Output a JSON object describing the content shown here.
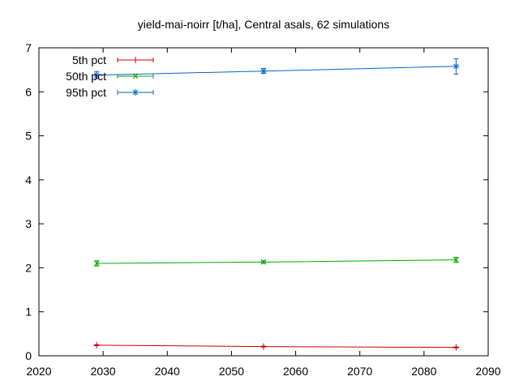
{
  "chart_data": {
    "type": "line",
    "title": "yield-mai-noirr [t/ha], Central asals, 62 simulations",
    "xlabel": "",
    "ylabel": "",
    "xlim": [
      2020,
      2090
    ],
    "ylim": [
      0,
      7
    ],
    "xticks": [
      2020,
      2030,
      2040,
      2050,
      2060,
      2070,
      2080,
      2090
    ],
    "yticks": [
      0,
      1,
      2,
      3,
      4,
      5,
      6,
      7
    ],
    "grid": false,
    "legend_position": "top-left",
    "series": [
      {
        "name": "5th pct",
        "color": "#cc0000",
        "marker": "plus",
        "points": [
          {
            "x": 2029,
            "y": 0.24,
            "err_low": 0.23,
            "err_high": 0.25
          },
          {
            "x": 2055,
            "y": 0.21,
            "err_low": 0.2,
            "err_high": 0.22
          },
          {
            "x": 2085,
            "y": 0.19,
            "err_low": 0.18,
            "err_high": 0.2
          }
        ]
      },
      {
        "name": "50th pct",
        "color": "#00aa00",
        "marker": "cross",
        "points": [
          {
            "x": 2029,
            "y": 2.1,
            "err_low": 2.04,
            "err_high": 2.16
          },
          {
            "x": 2055,
            "y": 2.13,
            "err_low": 2.1,
            "err_high": 2.16
          },
          {
            "x": 2085,
            "y": 2.18,
            "err_low": 2.12,
            "err_high": 2.24
          }
        ]
      },
      {
        "name": "95th pct",
        "color": "#0066cc",
        "marker": "star",
        "points": [
          {
            "x": 2029,
            "y": 6.38,
            "err_low": 6.3,
            "err_high": 6.46
          },
          {
            "x": 2055,
            "y": 6.47,
            "err_low": 6.42,
            "err_high": 6.53
          },
          {
            "x": 2085,
            "y": 6.58,
            "err_low": 6.4,
            "err_high": 6.75
          }
        ]
      }
    ]
  }
}
